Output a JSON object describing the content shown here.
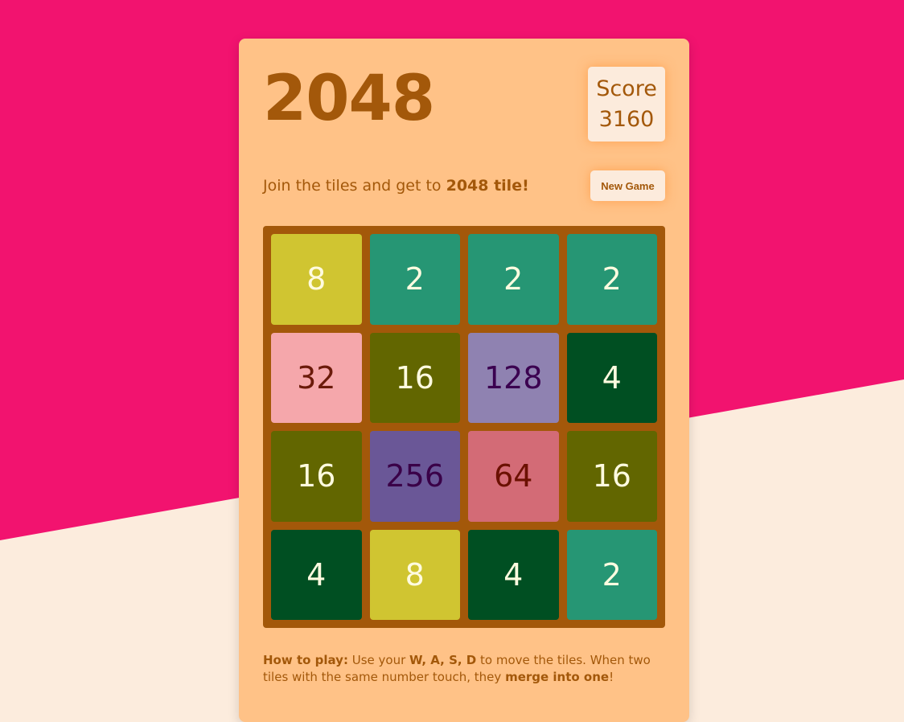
{
  "colors": {
    "background_top": "#f2136f",
    "background_bottom": "#fcecdd",
    "card": "#ffc287",
    "board": "#a3580a",
    "text": "#a3580a"
  },
  "header": {
    "title": "2048",
    "score_label": "Score",
    "score_value": "3160"
  },
  "intro": {
    "text": "Join the tiles and get to ",
    "bold": "2048 tile!"
  },
  "new_game_label": "New Game",
  "board": {
    "tiles": [
      [
        8,
        2,
        2,
        2
      ],
      [
        32,
        16,
        128,
        4
      ],
      [
        16,
        256,
        64,
        16
      ],
      [
        4,
        8,
        4,
        2
      ]
    ],
    "tile_styles": {
      "2": {
        "bg": "#269674",
        "fg": "#fffbe0"
      },
      "4": {
        "bg": "#004f22",
        "fg": "#fffbe0"
      },
      "8": {
        "bg": "#d0c531",
        "fg": "#fffbe0"
      },
      "16": {
        "bg": "#626600",
        "fg": "#fffbe0"
      },
      "32": {
        "bg": "#f5a7ab",
        "fg": "#6b1a0a"
      },
      "64": {
        "bg": "#d36b76",
        "fg": "#6b1000"
      },
      "128": {
        "bg": "#8f82b1",
        "fg": "#3b0050"
      },
      "256": {
        "bg": "#6a5797",
        "fg": "#3a0048"
      }
    }
  },
  "how_to": {
    "label": "How to play:",
    "t1": " Use your ",
    "keys": "W, A, S, D",
    "t2": " to move the tiles. When two tiles with the same number touch, they ",
    "merge": "merge into one",
    "t3": "!"
  }
}
